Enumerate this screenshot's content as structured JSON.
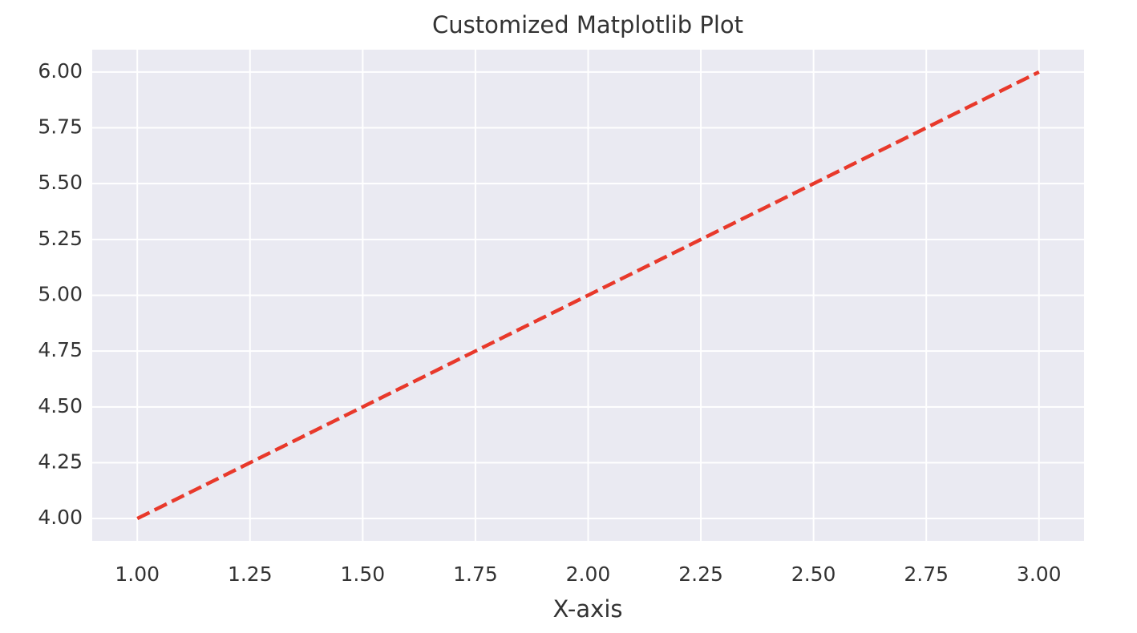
{
  "chart_data": {
    "type": "line",
    "title": "Customized Matplotlib Plot",
    "x_label": "X-axis",
    "x": [
      1,
      2,
      3
    ],
    "series": [
      {
        "color": "#e8392b",
        "values": [
          4,
          5,
          6
        ],
        "linestyle": "dashed"
      }
    ],
    "xlim": [
      0.9,
      3.1
    ],
    "xticks": [
      {
        "value": 1,
        "label": "1.00"
      },
      {
        "value": 1.25,
        "label": "1.25"
      },
      {
        "value": 1.5,
        "label": "1.50"
      },
      {
        "value": 1.75,
        "label": "1.75"
      },
      {
        "value": 2,
        "label": "2.00"
      },
      {
        "value": 2.25,
        "label": "2.25"
      },
      {
        "value": 2.5,
        "label": "2.50"
      },
      {
        "value": 2.75,
        "label": "2.75"
      },
      {
        "value": 3,
        "label": "3.00"
      }
    ],
    "ylim": [
      3.9,
      6.1
    ],
    "yticks": [
      {
        "value": 4,
        "label": "4.00"
      },
      {
        "value": 4.25,
        "label": "4.25"
      },
      {
        "value": 4.5,
        "label": "4.50"
      },
      {
        "value": 4.75,
        "label": "4.75"
      },
      {
        "value": 5,
        "label": "5.00"
      },
      {
        "value": 5.25,
        "label": "5.25"
      },
      {
        "value": 5.5,
        "label": "5.50"
      },
      {
        "value": 5.75,
        "label": "5.75"
      },
      {
        "value": 6,
        "label": "6.00"
      }
    ],
    "grid": true
  }
}
